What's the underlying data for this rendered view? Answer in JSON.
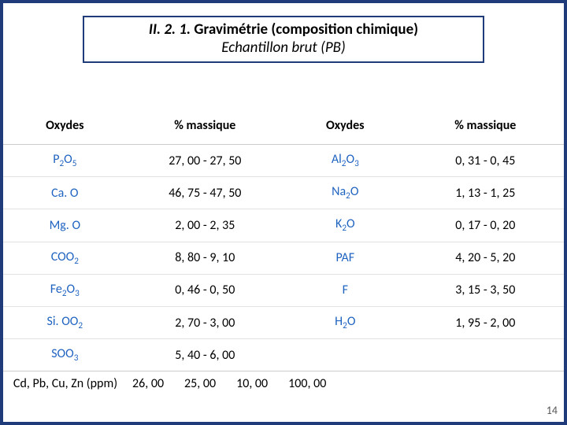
{
  "title": {
    "prefix": "II. 2. 1.",
    "main": "Gravimétrie (composition chimique)",
    "sub": "Echantillon brut (PB)"
  },
  "headers": {
    "oxy": "Oxydes",
    "val": "% massique"
  },
  "rows": [
    {
      "o1": "P",
      "o1s": "2",
      "o1o": "5",
      "v1": "27, 00 - 27, 50",
      "o2": "Al",
      "o2s": "2",
      "o2o": "3",
      "v2": "0, 31 - 0, 45"
    },
    {
      "o1": "Ca. O",
      "o1s": "",
      "o1o": "",
      "v1": "46, 75 - 47, 50",
      "o2": "Na",
      "o2s": "2",
      "o2o": "",
      "o2tail": "O",
      "v2": "1, 13 - 1, 25"
    },
    {
      "o1": "Mg. O",
      "o1s": "",
      "o1o": "",
      "v1": "2, 00 - 2, 35",
      "o2": "K",
      "o2s": "2",
      "o2o": "",
      "o2tail": "O",
      "v2": "0, 17 - 0, 20"
    },
    {
      "o1": "CO",
      "o1s": "",
      "o1o": "2",
      "o1tail": "",
      "v1": "8, 80 - 9, 10",
      "o2": "PAF",
      "o2s": "",
      "o2o": "",
      "v2": "4, 20 - 5, 20"
    },
    {
      "o1": "Fe",
      "o1s": "2",
      "o1o": "3",
      "v1": "0, 46 - 0, 50",
      "o2": "F",
      "o2s": "",
      "o2o": "",
      "v2": "3, 15 - 3, 50"
    },
    {
      "o1": "Si. O",
      "o1s": "",
      "o1o": "2",
      "v1": "2, 70 - 3, 00",
      "o2": "H",
      "o2s": "2",
      "o2o": "",
      "o2tail": "O",
      "v2": "1, 95 - 2, 00"
    },
    {
      "o1": "SO",
      "o1s": "",
      "o1o": "3",
      "v1": "5, 40 - 6, 00",
      "o2": "",
      "o2s": "",
      "o2o": "",
      "v2": ""
    }
  ],
  "footer": {
    "label": "Cd, Pb, Cu, Zn (ppm)",
    "vals": [
      "26, 00",
      "25, 00",
      "10, 00",
      "100, 00"
    ]
  },
  "page": "14",
  "colors": {
    "border": "#1f3b7a",
    "oxyde_text": "#1f63c0",
    "row_border": "#e2e2e2"
  }
}
